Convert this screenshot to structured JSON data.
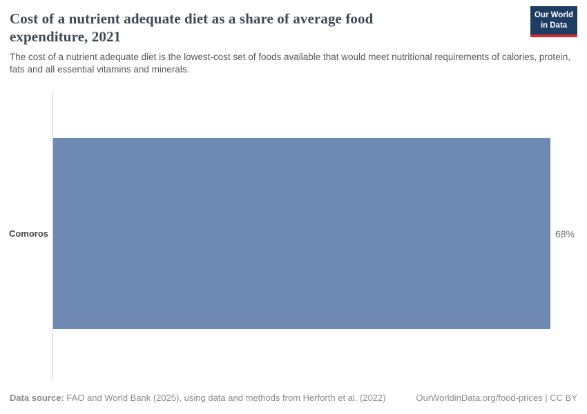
{
  "header": {
    "title": "Cost of a nutrient adequate diet as a share of average food expenditure, 2021",
    "subtitle": "The cost of a nutrient adequate diet is the lowest-cost set of foods available that would meet nutritional requirements of calories, protein, fats and all essential vitamins and minerals.",
    "logo": {
      "line1": "Our World",
      "line2": "in Data"
    }
  },
  "chart_data": {
    "type": "bar",
    "orientation": "horizontal",
    "title": "Cost of a nutrient adequate diet as a share of average food expenditure, 2021",
    "subtitle": "The cost of a nutrient adequate diet is the lowest-cost set of foods available that would meet nutritional requirements of calories, protein, fats and all essential vitamins and minerals.",
    "categories": [
      "Comoros"
    ],
    "values": [
      68
    ],
    "value_labels": [
      "68%"
    ],
    "unit": "%",
    "year": "2021",
    "xlabel": "",
    "ylabel": "",
    "xlim": [
      0,
      68
    ],
    "grid": false,
    "legend": false
  },
  "footer": {
    "source_label": "Data source:",
    "source_text": " FAO and World Bank (2025), using data and methods from Herforth et al. (2022)",
    "license": "OurWorldinData.org/food-prices | CC BY"
  },
  "colors": {
    "bar": "#6e89b2",
    "logo_bg": "#1d3d63",
    "logo_accent": "#d42b2f",
    "axis_line": "#e4e4e4",
    "title_text": "#3d4a55",
    "muted_text": "#8b8b8b"
  }
}
